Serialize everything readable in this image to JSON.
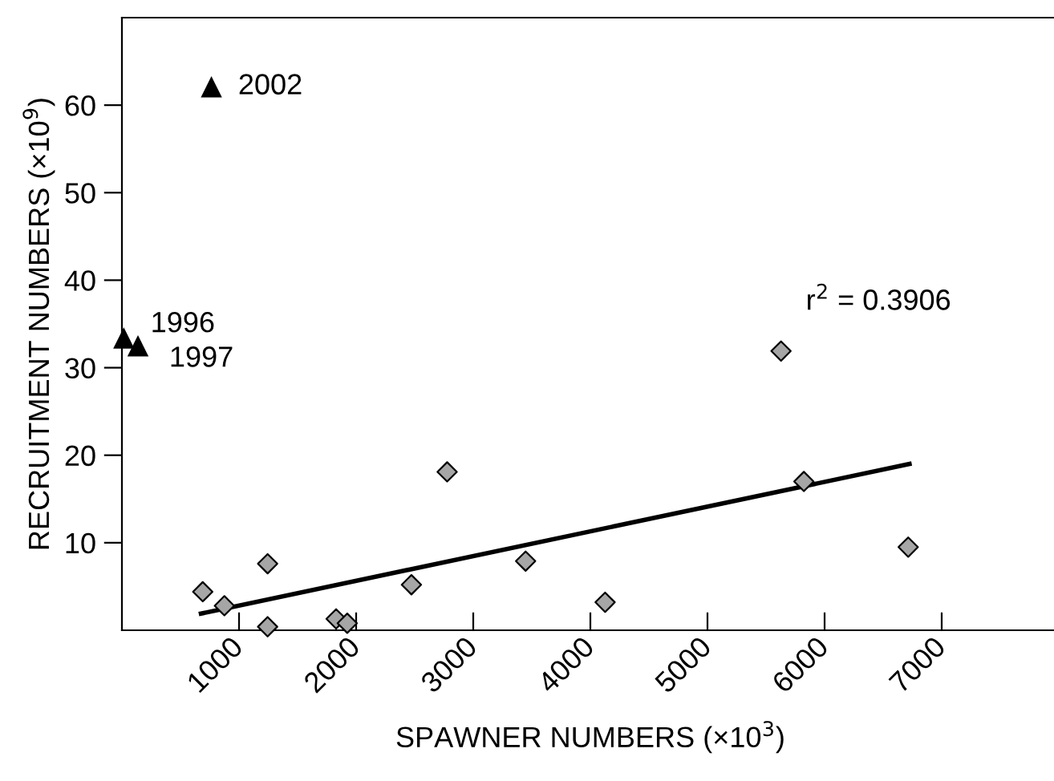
{
  "chart_data": {
    "type": "scatter",
    "xlabel": "SPAWNER NUMBERS (×10$^{3}$)",
    "ylabel": "RECRUITMENT NUMBERS (×10$^{9}$)",
    "xlim": [
      0,
      8000
    ],
    "xticks": [
      1000,
      2000,
      3000,
      4000,
      5000,
      6000,
      7000
    ],
    "ylim": [
      0,
      70
    ],
    "yticks": [
      10,
      20,
      30,
      40,
      50,
      60
    ],
    "grid": false,
    "legend": false,
    "series": [
      {
        "marker": "diamond",
        "color": "#a6a6a6",
        "x": [
          690,
          875,
          1244,
          1244,
          1829,
          1924,
          2472,
          2777,
          3447,
          4126,
          5628,
          5823,
          6714
        ],
        "values": [
          4.4,
          2.8,
          7.6,
          0.4,
          1.3,
          0.8,
          5.2,
          18.1,
          7.9,
          3.2,
          31.9,
          17.0,
          9.5
        ]
      },
      {
        "marker": "triangle",
        "color": "#000000",
        "x": [
          764,
          16,
          137
        ],
        "values": [
          62.1,
          33.4,
          32.5
        ]
      },
      {
        "type": "line",
        "marker": "none",
        "line_style": "solid",
        "color": "#000000",
        "x": [
          675,
          6725
        ],
        "values": [
          1.9,
          19.0
        ]
      }
    ],
    "annotations": [
      {
        "text": "2002",
        "x": 764,
        "y": 62.1
      },
      {
        "text": "1996",
        "x": 16,
        "y": 33.4
      },
      {
        "text": "1997",
        "x": 137,
        "y": 32.5
      },
      "r$^{2}$ = 0.3906"
    ]
  }
}
